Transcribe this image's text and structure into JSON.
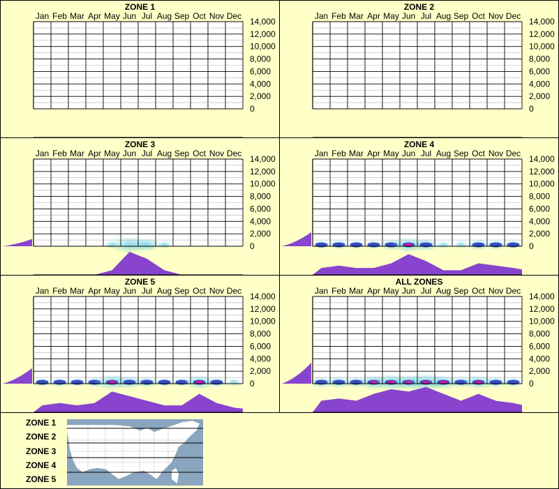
{
  "months": [
    "Jan",
    "Feb",
    "Mar",
    "Apr",
    "May",
    "Jun",
    "Jul",
    "Aug",
    "Sep",
    "Oct",
    "Nov",
    "Dec"
  ],
  "y_ticks": [
    "14,000",
    "12,000",
    "10,000",
    "8,000",
    "6,000",
    "4,000",
    "2,000",
    "0"
  ],
  "chart_data": [
    {
      "type": "area",
      "title": "ZONE 1",
      "categories": [
        "Jan",
        "Feb",
        "Mar",
        "Apr",
        "May",
        "Jun",
        "Jul",
        "Aug",
        "Sep",
        "Oct",
        "Nov",
        "Dec"
      ],
      "ylim": [
        0,
        14000
      ],
      "series": [
        {
          "values": [
            0,
            0,
            0,
            0,
            0,
            0,
            0,
            0,
            0,
            0,
            0,
            0
          ]
        }
      ]
    },
    {
      "type": "area",
      "title": "ZONE 2",
      "categories": [
        "Jan",
        "Feb",
        "Mar",
        "Apr",
        "May",
        "Jun",
        "Jul",
        "Aug",
        "Sep",
        "Oct",
        "Nov",
        "Dec"
      ],
      "ylim": [
        0,
        14000
      ],
      "series": [
        {
          "values": [
            0,
            0,
            0,
            0,
            0,
            0,
            0,
            0,
            0,
            0,
            0,
            0
          ]
        }
      ]
    },
    {
      "type": "area",
      "title": "ZONE 3",
      "categories": [
        "Jan",
        "Feb",
        "Mar",
        "Apr",
        "May",
        "Jun",
        "Jul",
        "Aug",
        "Sep",
        "Oct",
        "Nov",
        "Dec"
      ],
      "ylim": [
        0,
        14000
      ],
      "series": [
        {
          "values": [
            0,
            0,
            0,
            0,
            2,
            10,
            7,
            2,
            0,
            0,
            0,
            0
          ]
        }
      ]
    },
    {
      "type": "area",
      "title": "ZONE 4",
      "categories": [
        "Jan",
        "Feb",
        "Mar",
        "Apr",
        "May",
        "Jun",
        "Jul",
        "Aug",
        "Sep",
        "Oct",
        "Nov",
        "Dec"
      ],
      "ylim": [
        0,
        14000
      ],
      "series": [
        {
          "values": [
            3,
            4,
            3,
            3,
            5,
            9,
            6,
            2,
            2,
            5,
            4,
            3
          ]
        }
      ]
    },
    {
      "type": "area",
      "title": "ZONE 5",
      "categories": [
        "Jan",
        "Feb",
        "Mar",
        "Apr",
        "May",
        "Jun",
        "Jul",
        "Aug",
        "Sep",
        "Oct",
        "Nov",
        "Dec"
      ],
      "ylim": [
        0,
        14000
      ],
      "series": [
        {
          "values": [
            3,
            4,
            3,
            4,
            9,
            7,
            5,
            3,
            3,
            8,
            4,
            2
          ]
        }
      ]
    },
    {
      "type": "area",
      "title": "ALL ZONES",
      "categories": [
        "Jan",
        "Feb",
        "Mar",
        "Apr",
        "May",
        "Jun",
        "Jul",
        "Aug",
        "Sep",
        "Oct",
        "Nov",
        "Dec"
      ],
      "ylim": [
        0,
        14000
      ],
      "series": [
        {
          "values": [
            5,
            6,
            5,
            8,
            10,
            9,
            11,
            8,
            5,
            8,
            5,
            4
          ]
        }
      ]
    }
  ],
  "zones_legend": [
    "ZONE 1",
    "ZONE 2",
    "ZONE 3",
    "ZONE 4",
    "ZONE 5"
  ],
  "colors": {
    "background": "#ffffc8",
    "area": "#8844cc",
    "heat_core": "#dd1199",
    "heat_mid": "#2233bb",
    "heat_glow": "#55c8dd",
    "map_water": "#8aa5bf",
    "map_land": "#ffffff"
  }
}
